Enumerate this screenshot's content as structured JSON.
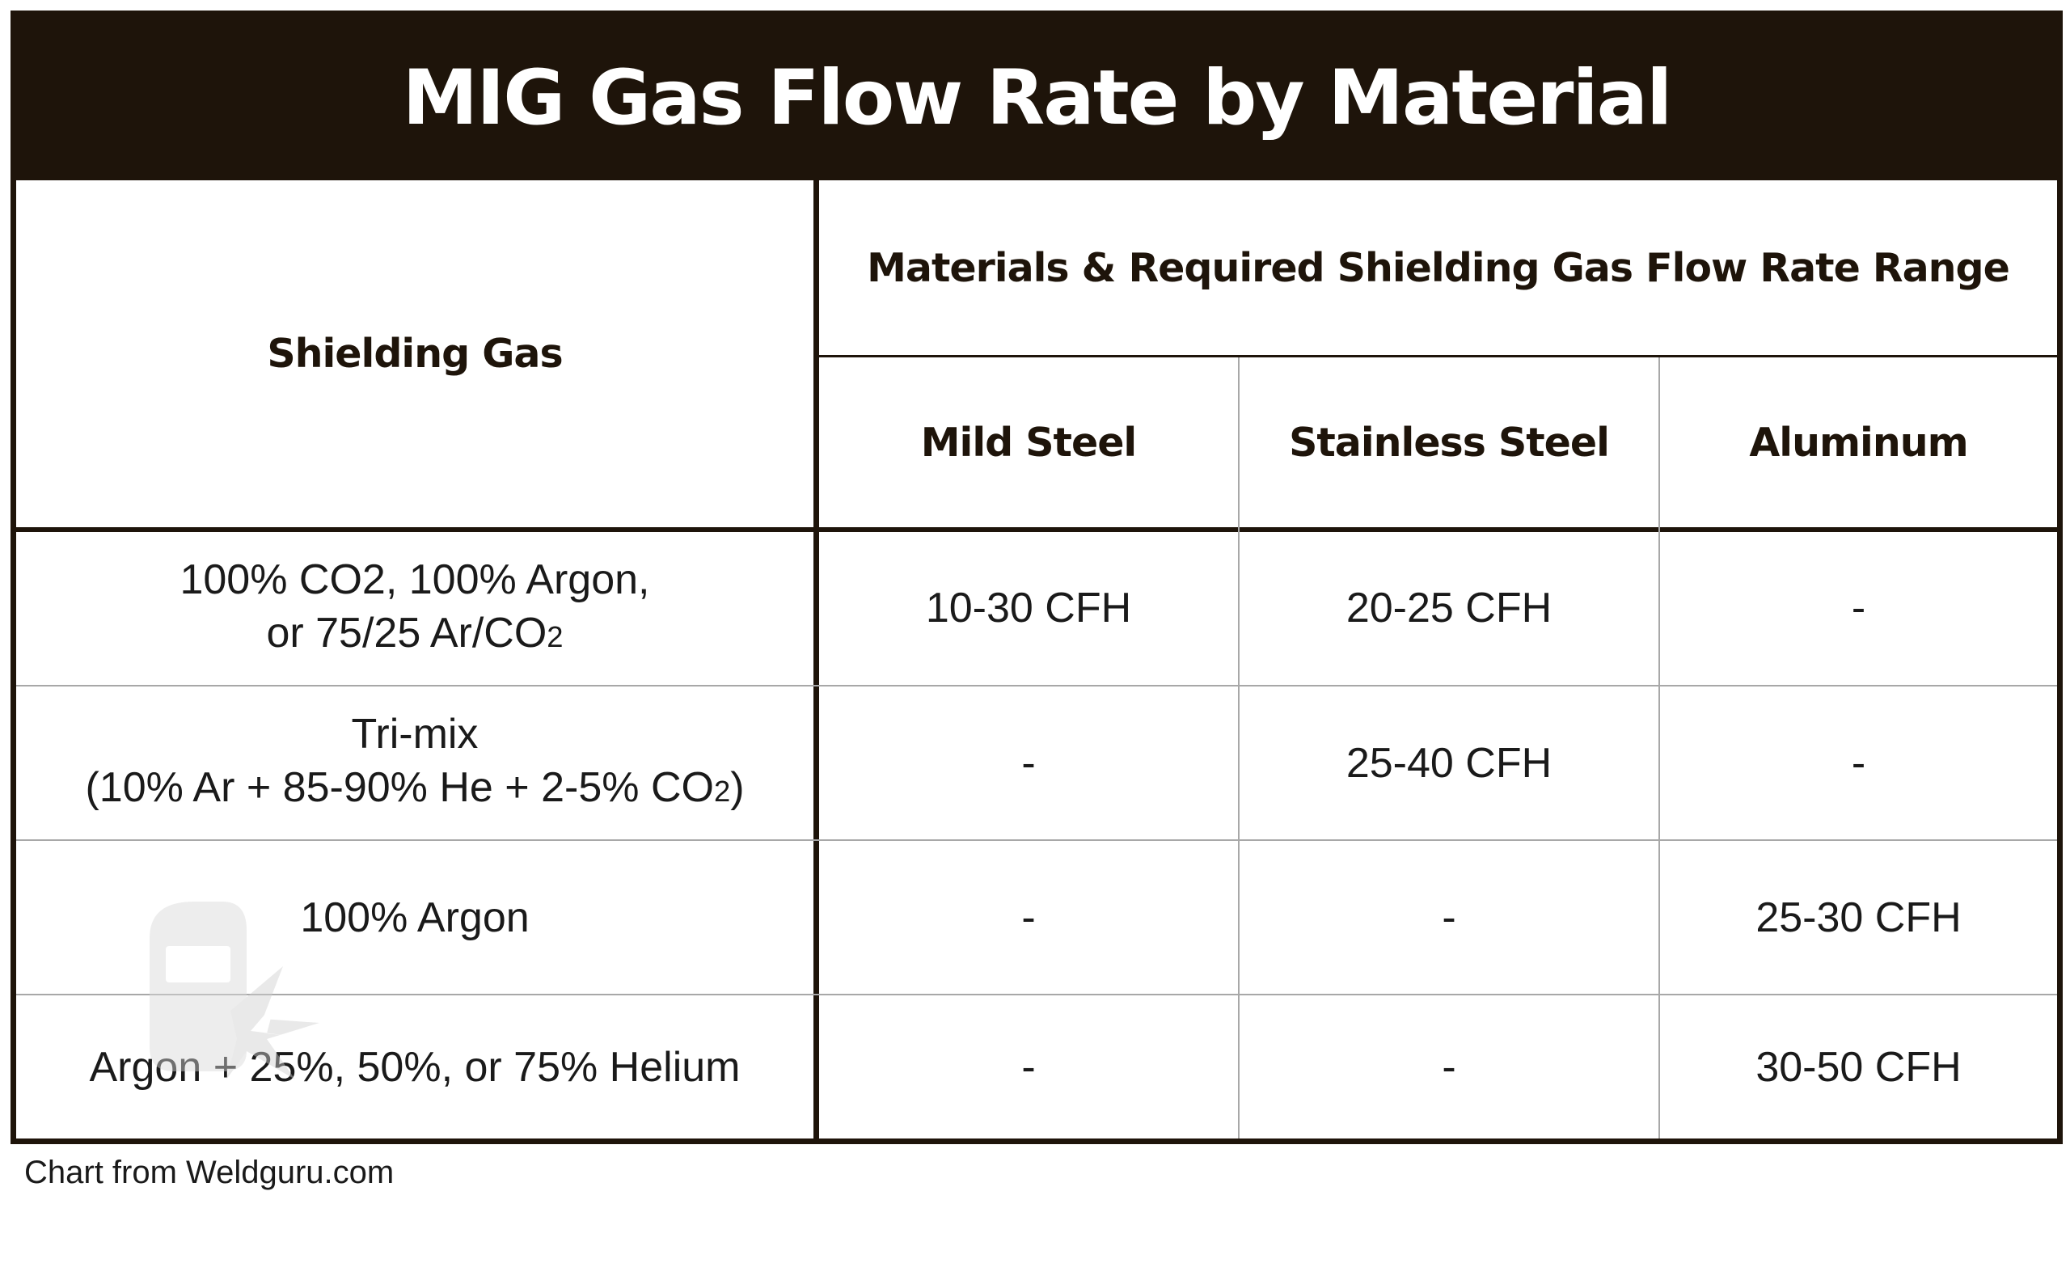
{
  "title": "MIG Gas Flow Rate by Material",
  "source_note": "Chart from Weldguru.com",
  "colors": {
    "header_background": "#1e140a",
    "header_text": "#ffffff",
    "grid_dark": "#1e140a",
    "grid_light": "#a8a8a8"
  },
  "chart_data": {
    "type": "table",
    "title": "MIG Gas Flow Rate by Material",
    "row_header_label": "Shielding Gas",
    "group_header": "Materials & Required Shielding Gas Flow Rate Range",
    "columns": [
      "Mild Steel",
      "Stainless Steel",
      "Aluminum"
    ],
    "rows": [
      {
        "gas_line1": "100% CO2, 100% Argon,",
        "gas_line2": "or 75/25 Ar/CO",
        "gas_line2_sub": "2",
        "gas_line2_end": "",
        "values": [
          "10-30 CFH",
          "20-25 CFH",
          "-"
        ]
      },
      {
        "gas_line1": "Tri-mix",
        "gas_line2": "(10% Ar + 85-90% He + 2-5% CO",
        "gas_line2_sub": "2",
        "gas_line2_end": ")",
        "values": [
          "-",
          "25-40 CFH",
          "-"
        ]
      },
      {
        "gas_line1": "100% Argon",
        "values": [
          "-",
          "-",
          "25-30 CFH"
        ]
      },
      {
        "gas_line1": "Argon + 25%, 50%, or 75% Helium",
        "values": [
          "-",
          "-",
          "30-50 CFH"
        ]
      }
    ]
  }
}
